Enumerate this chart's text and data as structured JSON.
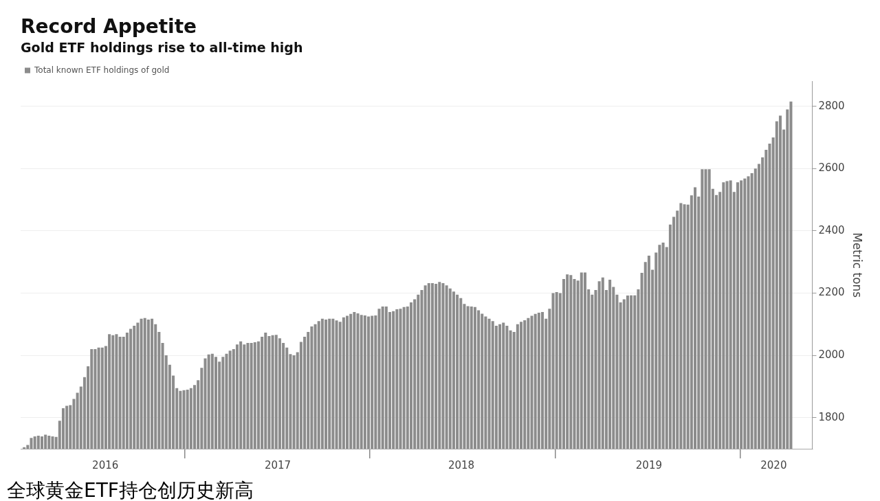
{
  "chart_data": {
    "type": "bar",
    "title": "Record Appetite",
    "subtitle": "Gold ETF holdings rise to all-time high",
    "ylabel": "Metric tons",
    "annotations": [
      "全球黄金ETF持仓创历史新高"
    ],
    "legend": "top left",
    "grid": "y",
    "xlim": [
      "2016-02-12",
      "2020-05-22"
    ],
    "xticks": [
      {
        "value": "2016-07-28",
        "label": "2016"
      },
      {
        "value": "2017-01-01",
        "label": null
      },
      {
        "value": "2017-07-03",
        "label": "2017"
      },
      {
        "value": "2018-01-01",
        "label": null
      },
      {
        "value": "2018-06-30",
        "label": "2018"
      },
      {
        "value": "2019-01-01",
        "label": null
      },
      {
        "value": "2019-07-05",
        "label": "2019"
      },
      {
        "value": "2020-01-01",
        "label": null
      },
      {
        "value": "2020-03-07",
        "label": "2020"
      }
    ],
    "ylim": [
      1700,
      2880
    ],
    "yticks": [
      1800,
      2000,
      2200,
      2400,
      2600,
      2800
    ],
    "x": [
      "2016-02-19",
      "2016-02-26",
      "2016-03-04",
      "2016-03-11",
      "2016-03-18",
      "2016-03-25",
      "2016-04-01",
      "2016-04-08",
      "2016-04-15",
      "2016-04-22",
      "2016-04-29",
      "2016-05-06",
      "2016-05-13",
      "2016-05-20",
      "2016-05-27",
      "2016-06-03",
      "2016-06-10",
      "2016-06-17",
      "2016-06-24",
      "2016-07-01",
      "2016-07-08",
      "2016-07-15",
      "2016-07-22",
      "2016-07-29",
      "2016-08-05",
      "2016-08-12",
      "2016-08-19",
      "2016-08-26",
      "2016-09-02",
      "2016-09-09",
      "2016-09-16",
      "2016-09-23",
      "2016-09-30",
      "2016-10-07",
      "2016-10-14",
      "2016-10-21",
      "2016-10-28",
      "2016-11-04",
      "2016-11-11",
      "2016-11-18",
      "2016-11-25",
      "2016-12-02",
      "2016-12-09",
      "2016-12-16",
      "2016-12-23",
      "2016-12-30",
      "2017-01-06",
      "2017-01-13",
      "2017-01-20",
      "2017-01-27",
      "2017-02-03",
      "2017-02-10",
      "2017-02-17",
      "2017-02-24",
      "2017-03-03",
      "2017-03-10",
      "2017-03-17",
      "2017-03-24",
      "2017-03-31",
      "2017-04-07",
      "2017-04-14",
      "2017-04-21",
      "2017-04-28",
      "2017-05-05",
      "2017-05-12",
      "2017-05-19",
      "2017-05-26",
      "2017-06-02",
      "2017-06-09",
      "2017-06-16",
      "2017-06-23",
      "2017-06-30",
      "2017-07-07",
      "2017-07-14",
      "2017-07-21",
      "2017-07-28",
      "2017-08-04",
      "2017-08-11",
      "2017-08-18",
      "2017-08-25",
      "2017-09-01",
      "2017-09-08",
      "2017-09-15",
      "2017-09-22",
      "2017-09-29",
      "2017-10-06",
      "2017-10-13",
      "2017-10-20",
      "2017-10-27",
      "2017-11-03",
      "2017-11-10",
      "2017-11-17",
      "2017-11-24",
      "2017-12-01",
      "2017-12-08",
      "2017-12-15",
      "2017-12-22",
      "2017-12-29",
      "2018-01-05",
      "2018-01-12",
      "2018-01-19",
      "2018-01-26",
      "2018-02-02",
      "2018-02-09",
      "2018-02-16",
      "2018-02-23",
      "2018-03-02",
      "2018-03-09",
      "2018-03-16",
      "2018-03-23",
      "2018-03-30",
      "2018-04-06",
      "2018-04-13",
      "2018-04-20",
      "2018-04-27",
      "2018-05-04",
      "2018-05-11",
      "2018-05-18",
      "2018-05-25",
      "2018-06-01",
      "2018-06-08",
      "2018-06-15",
      "2018-06-22",
      "2018-06-29",
      "2018-07-06",
      "2018-07-13",
      "2018-07-20",
      "2018-07-27",
      "2018-08-03",
      "2018-08-10",
      "2018-08-17",
      "2018-08-24",
      "2018-08-31",
      "2018-09-07",
      "2018-09-14",
      "2018-09-21",
      "2018-09-28",
      "2018-10-05",
      "2018-10-12",
      "2018-10-19",
      "2018-10-26",
      "2018-11-02",
      "2018-11-09",
      "2018-11-16",
      "2018-11-23",
      "2018-11-30",
      "2018-12-07",
      "2018-12-14",
      "2018-12-21",
      "2018-12-28",
      "2019-01-04",
      "2019-01-11",
      "2019-01-18",
      "2019-01-25",
      "2019-02-01",
      "2019-02-08",
      "2019-02-15",
      "2019-02-22",
      "2019-03-01",
      "2019-03-08",
      "2019-03-15",
      "2019-03-22",
      "2019-03-29",
      "2019-04-05",
      "2019-04-12",
      "2019-04-19",
      "2019-04-26",
      "2019-05-03",
      "2019-05-10",
      "2019-05-17",
      "2019-05-24",
      "2019-05-31",
      "2019-06-07",
      "2019-06-14",
      "2019-06-21",
      "2019-06-28",
      "2019-07-05",
      "2019-07-12",
      "2019-07-19",
      "2019-07-26",
      "2019-08-02",
      "2019-08-09",
      "2019-08-16",
      "2019-08-23",
      "2019-08-30",
      "2019-09-06",
      "2019-09-13",
      "2019-09-20",
      "2019-09-27",
      "2019-10-04",
      "2019-10-11",
      "2019-10-18",
      "2019-10-25",
      "2019-11-01",
      "2019-11-08",
      "2019-11-15",
      "2019-11-22",
      "2019-11-29",
      "2019-12-06",
      "2019-12-13",
      "2019-12-20",
      "2019-12-27",
      "2020-01-03",
      "2020-01-10",
      "2020-01-17",
      "2020-01-24",
      "2020-01-31",
      "2020-02-07",
      "2020-02-14",
      "2020-02-21",
      "2020-02-28",
      "2020-03-06",
      "2020-03-13",
      "2020-03-20",
      "2020-03-27",
      "2020-04-03",
      "2020-04-10"
    ],
    "series": [
      {
        "name": "Total known ETF holdings of gold",
        "color": "#8c8c8c",
        "values": [
          1705,
          1712,
          1735,
          1740,
          1742,
          1740,
          1745,
          1742,
          1740,
          1738,
          1790,
          1830,
          1838,
          1840,
          1860,
          1880,
          1900,
          1930,
          1965,
          2020,
          2020,
          2025,
          2025,
          2030,
          2068,
          2065,
          2068,
          2060,
          2060,
          2073,
          2085,
          2095,
          2105,
          2118,
          2120,
          2115,
          2118,
          2100,
          2075,
          2040,
          2000,
          1970,
          1935,
          1895,
          1886,
          1888,
          1890,
          1895,
          1905,
          1920,
          1960,
          1990,
          2003,
          2005,
          1995,
          1980,
          1995,
          2005,
          2015,
          2020,
          2035,
          2045,
          2035,
          2040,
          2040,
          2042,
          2045,
          2060,
          2073,
          2062,
          2065,
          2066,
          2055,
          2040,
          2025,
          2004,
          2000,
          2010,
          2043,
          2060,
          2075,
          2093,
          2100,
          2110,
          2118,
          2115,
          2118,
          2118,
          2112,
          2108,
          2122,
          2127,
          2133,
          2139,
          2135,
          2130,
          2128,
          2125,
          2127,
          2128,
          2150,
          2157,
          2157,
          2139,
          2142,
          2148,
          2150,
          2155,
          2157,
          2170,
          2180,
          2195,
          2210,
          2225,
          2232,
          2232,
          2230,
          2236,
          2232,
          2225,
          2215,
          2205,
          2195,
          2184,
          2165,
          2158,
          2157,
          2155,
          2145,
          2134,
          2125,
          2118,
          2110,
          2095,
          2100,
          2105,
          2095,
          2080,
          2075,
          2100,
          2108,
          2113,
          2120,
          2127,
          2133,
          2137,
          2139,
          2118,
          2150,
          2200,
          2203,
          2200,
          2245,
          2260,
          2258,
          2245,
          2240,
          2266,
          2266,
          2212,
          2195,
          2210,
          2238,
          2250,
          2210,
          2243,
          2220,
          2195,
          2170,
          2180,
          2192,
          2193,
          2193,
          2212,
          2265,
          2300,
          2320,
          2275,
          2330,
          2355,
          2362,
          2348,
          2420,
          2445,
          2465,
          2489,
          2485,
          2484,
          2514,
          2540,
          2510,
          2598,
          2598,
          2598,
          2535,
          2515,
          2525,
          2556,
          2560,
          2562,
          2525,
          2556,
          2562,
          2568,
          2575,
          2585,
          2600,
          2615,
          2636,
          2660,
          2680,
          2700,
          2752,
          2770,
          2725,
          2790,
          2815
        ]
      }
    ]
  }
}
